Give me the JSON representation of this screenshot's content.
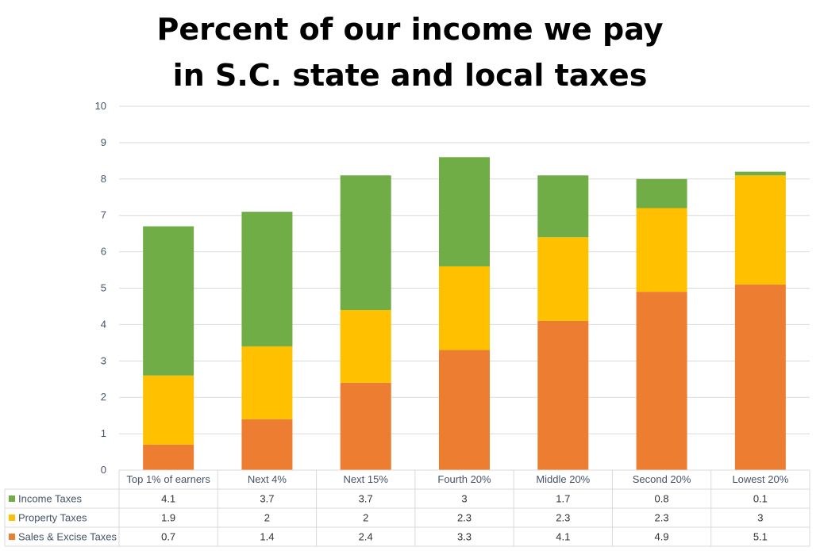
{
  "title_lines": [
    "Percent of our income we pay",
    "in S.C. state and local taxes"
  ],
  "chart_data": {
    "type": "bar",
    "stacked": true,
    "title": "Percent of our income we pay in S.C. state and local taxes",
    "categories": [
      "Top 1% of earners",
      "Next 4%",
      "Next 15%",
      "Fourth 20%",
      "Middle 20%",
      "Second 20%",
      "Lowest 20%"
    ],
    "series": [
      {
        "name": "Sales & Excise Taxes",
        "color": "#ed7d31",
        "values": [
          0.7,
          1.4,
          2.4,
          3.3,
          4.1,
          4.9,
          5.1
        ]
      },
      {
        "name": "Property Taxes",
        "color": "#ffc000",
        "values": [
          1.9,
          2,
          2,
          2.3,
          2.3,
          2.3,
          3
        ]
      },
      {
        "name": "Income Taxes",
        "color": "#70ad47",
        "values": [
          4.1,
          3.7,
          3.7,
          3,
          1.7,
          0.8,
          0.1
        ]
      }
    ],
    "table_rows": [
      {
        "name": "Income Taxes",
        "color": "#70ad47",
        "values": [
          "4.1",
          "3.7",
          "3.7",
          "3",
          "1.7",
          "0.8",
          "0.1"
        ]
      },
      {
        "name": "Property Taxes",
        "color": "#ffc000",
        "values": [
          "1.9",
          "2",
          "2",
          "2.3",
          "2.3",
          "2.3",
          "3"
        ]
      },
      {
        "name": "Sales & Excise Taxes",
        "color": "#ed7d31",
        "values": [
          "0.7",
          "1.4",
          "2.4",
          "3.3",
          "4.1",
          "4.9",
          "5.1"
        ]
      }
    ],
    "yticks": [
      "0",
      "1",
      "2",
      "3",
      "4",
      "5",
      "6",
      "7",
      "8",
      "9",
      "10"
    ],
    "ylim": [
      0,
      10
    ],
    "grid": true,
    "legend": "data-table"
  }
}
